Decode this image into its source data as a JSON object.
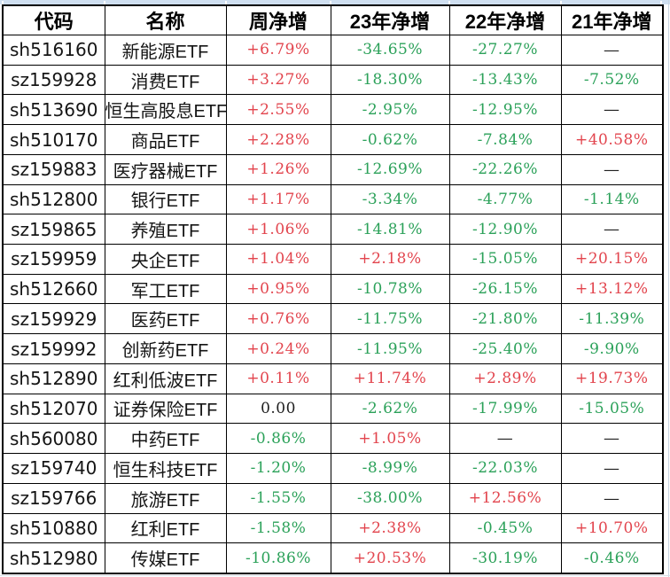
{
  "colors": {
    "positive": "#e2444d",
    "negative": "#2ba159",
    "neutral": "#1f1f1f",
    "table_border": "#000000",
    "top_strip": "#cfdff0"
  },
  "table": {
    "columns": [
      {
        "key": "code",
        "label": "代码"
      },
      {
        "key": "name",
        "label": "名称"
      },
      {
        "key": "week",
        "label": "周净增"
      },
      {
        "key": "y23",
        "label": "23年净增"
      },
      {
        "key": "y22",
        "label": "22年净增"
      },
      {
        "key": "y21",
        "label": "21年净增"
      }
    ],
    "rows": [
      {
        "code": "sh516160",
        "name": "新能源ETF",
        "week": "+6.79%",
        "y23": "-34.65%",
        "y22": "-27.27%",
        "y21": "—"
      },
      {
        "code": "sz159928",
        "name": "消费ETF",
        "week": "+3.27%",
        "y23": "-18.30%",
        "y22": "-13.43%",
        "y21": "-7.52%"
      },
      {
        "code": "sh513690",
        "name": "恒生高股息ETF",
        "week": "+2.55%",
        "y23": "-2.95%",
        "y22": "-12.95%",
        "y21": "—"
      },
      {
        "code": "sh510170",
        "name": "商品ETF",
        "week": "+2.28%",
        "y23": "-0.62%",
        "y22": "-7.84%",
        "y21": "+40.58%"
      },
      {
        "code": "sz159883",
        "name": "医疗器械ETF",
        "week": "+1.26%",
        "y23": "-12.69%",
        "y22": "-22.26%",
        "y21": "—"
      },
      {
        "code": "sh512800",
        "name": "银行ETF",
        "week": "+1.17%",
        "y23": "-3.34%",
        "y22": "-4.77%",
        "y21": "-1.14%"
      },
      {
        "code": "sz159865",
        "name": "养殖ETF",
        "week": "+1.06%",
        "y23": "-14.81%",
        "y22": "-12.90%",
        "y21": "—"
      },
      {
        "code": "sz159959",
        "name": "央企ETF",
        "week": "+1.04%",
        "y23": "+2.18%",
        "y22": "-15.05%",
        "y21": "+20.15%"
      },
      {
        "code": "sh512660",
        "name": "军工ETF",
        "week": "+0.95%",
        "y23": "-10.78%",
        "y22": "-26.15%",
        "y21": "+13.12%"
      },
      {
        "code": "sz159929",
        "name": "医药ETF",
        "week": "+0.76%",
        "y23": "-11.75%",
        "y22": "-21.80%",
        "y21": "-11.39%"
      },
      {
        "code": "sz159992",
        "name": "创新药ETF",
        "week": "+0.24%",
        "y23": "-11.95%",
        "y22": "-25.40%",
        "y21": "-9.90%"
      },
      {
        "code": "sh512890",
        "name": "红利低波ETF",
        "week": "+0.11%",
        "y23": "+11.74%",
        "y22": "+2.89%",
        "y21": "+19.73%"
      },
      {
        "code": "sh512070",
        "name": "证券保险ETF",
        "week": "0.00",
        "y23": "-2.62%",
        "y22": "-17.99%",
        "y21": "-15.05%"
      },
      {
        "code": "sh560080",
        "name": "中药ETF",
        "week": "-0.86%",
        "y23": "+1.05%",
        "y22": "—",
        "y21": "—"
      },
      {
        "code": "sz159740",
        "name": "恒生科技ETF",
        "week": "-1.20%",
        "y23": "-8.99%",
        "y22": "-22.03%",
        "y21": "—"
      },
      {
        "code": "sz159766",
        "name": "旅游ETF",
        "week": "-1.55%",
        "y23": "-38.00%",
        "y22": "+12.56%",
        "y21": "—"
      },
      {
        "code": "sh510880",
        "name": "红利ETF",
        "week": "-1.58%",
        "y23": "+2.38%",
        "y22": "-0.45%",
        "y21": "+10.70%"
      },
      {
        "code": "sh512980",
        "name": "传媒ETF",
        "week": "-10.86%",
        "y23": "+20.53%",
        "y22": "-30.19%",
        "y21": "-0.46%"
      }
    ]
  }
}
